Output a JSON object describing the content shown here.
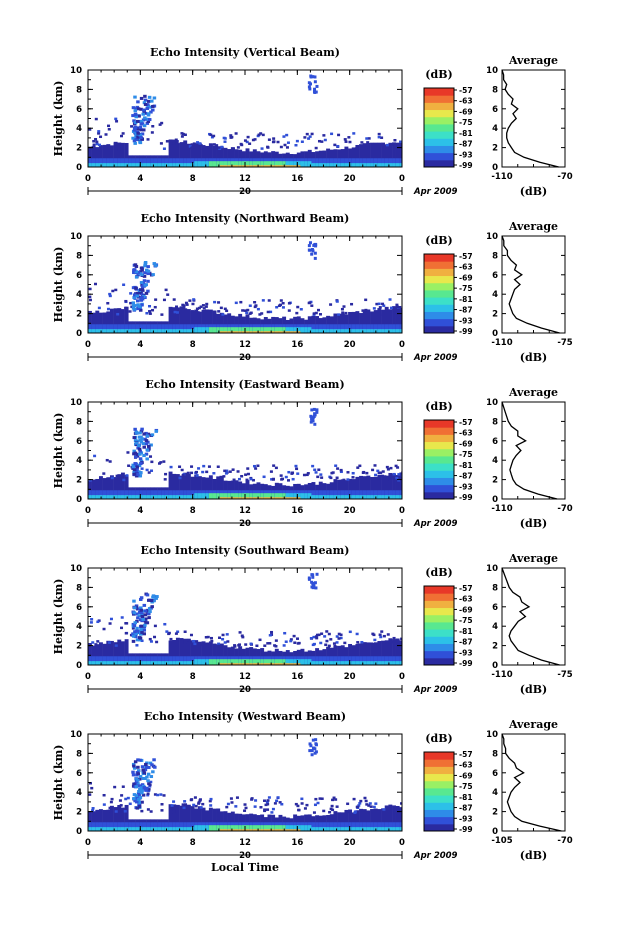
{
  "colormap": [
    "#2a2aa0",
    "#3050d8",
    "#2e8ce8",
    "#2cc0e8",
    "#3ce0c8",
    "#58e890",
    "#9af064",
    "#e8e84c",
    "#f0b040",
    "#f07034",
    "#e83828"
  ],
  "colorbar": {
    "unit": "(dB)",
    "ticks": [
      "-57",
      "-63",
      "-69",
      "-75",
      "-81",
      "-87",
      "-93",
      "-99"
    ]
  },
  "shared": {
    "ylabel": "Height (km)",
    "yticks": [
      "0",
      "2",
      "4",
      "6",
      "8",
      "10"
    ],
    "xticks": [
      "0",
      "4",
      "8",
      "12",
      "16",
      "20",
      "0"
    ],
    "date_mid": "20",
    "date_label": "Apr 2009",
    "x_label": "Local Time",
    "avg_title": "Average",
    "avg_unit": "(dB)"
  },
  "chart_data": [
    {
      "type": "heatmap",
      "title": "Echo Intensity (Vertical Beam)",
      "x_range": [
        0,
        24
      ],
      "y_range": [
        0,
        10
      ],
      "avg_xlim": [
        -110,
        -70
      ],
      "avg_xticks": [
        "-110",
        "-70"
      ],
      "average_profile": {
        "height_km": [
          0,
          0.5,
          1,
          1.5,
          2,
          2.5,
          3,
          3.5,
          4,
          4.5,
          5,
          5.5,
          6,
          6.5,
          7,
          7.5,
          8,
          8.5,
          9,
          9.5,
          10
        ],
        "dB": [
          -74,
          -86,
          -96,
          -102,
          -104,
          -106,
          -107,
          -107,
          -106,
          -104,
          -101,
          -103,
          -100,
          -104,
          -103,
          -106,
          -108,
          -107,
          -109,
          -109,
          -110
        ]
      }
    },
    {
      "type": "heatmap",
      "title": "Echo Intensity (Northward Beam)",
      "x_range": [
        0,
        24
      ],
      "y_range": [
        0,
        10
      ],
      "avg_xlim": [
        -110,
        -75
      ],
      "avg_xticks": [
        "-110",
        "-75"
      ],
      "average_profile": {
        "height_km": [
          0,
          0.5,
          1,
          1.5,
          2,
          2.5,
          3,
          3.5,
          4,
          4.5,
          5,
          5.5,
          6,
          6.5,
          7,
          7.5,
          8,
          8.5,
          9,
          9.5,
          10
        ],
        "dB": [
          -78,
          -88,
          -96,
          -102,
          -104,
          -105,
          -106,
          -105,
          -104,
          -103,
          -100,
          -103,
          -99,
          -103,
          -102,
          -105,
          -107,
          -107,
          -109,
          -109,
          -110
        ]
      }
    },
    {
      "type": "heatmap",
      "title": "Echo Intensity (Eastward Beam)",
      "x_range": [
        0,
        24
      ],
      "y_range": [
        0,
        10
      ],
      "avg_xlim": [
        -110,
        -70
      ],
      "avg_xticks": [
        "-110",
        "-70"
      ],
      "average_profile": {
        "height_km": [
          0,
          0.5,
          1,
          1.5,
          2,
          2.5,
          3,
          3.5,
          4,
          4.5,
          5,
          5.5,
          6,
          6.5,
          7,
          7.5,
          8,
          8.5,
          9,
          9.5,
          10
        ],
        "dB": [
          -75,
          -87,
          -96,
          -101,
          -103,
          -104,
          -105,
          -104,
          -103,
          -101,
          -98,
          -101,
          -95,
          -100,
          -100,
          -104,
          -106,
          -107,
          -108,
          -109,
          -110
        ]
      }
    },
    {
      "type": "heatmap",
      "title": "Echo Intensity (Southward Beam)",
      "x_range": [
        0,
        24
      ],
      "y_range": [
        0,
        10
      ],
      "avg_xlim": [
        -110,
        -75
      ],
      "avg_xticks": [
        "-110",
        "-75"
      ],
      "average_profile": {
        "height_km": [
          0,
          0.5,
          1,
          1.5,
          2,
          2.5,
          3,
          3.5,
          4,
          4.5,
          5,
          5.5,
          6,
          6.5,
          7,
          7.5,
          8,
          8.5,
          9,
          9.5,
          10
        ],
        "dB": [
          -78,
          -88,
          -95,
          -101,
          -103,
          -105,
          -106,
          -105,
          -103,
          -101,
          -97,
          -100,
          -95,
          -99,
          -100,
          -104,
          -106,
          -107,
          -108,
          -109,
          -110
        ]
      }
    },
    {
      "type": "heatmap",
      "title": "Echo Intensity (Westward Beam)",
      "x_range": [
        0,
        24
      ],
      "y_range": [
        0,
        10
      ],
      "avg_xlim": [
        -105,
        -70
      ],
      "avg_xticks": [
        "-105",
        "-70"
      ],
      "average_profile": {
        "height_km": [
          0,
          0.5,
          1,
          1.5,
          2,
          2.5,
          3,
          3.5,
          4,
          4.5,
          5,
          5.5,
          6,
          6.5,
          7,
          7.5,
          8,
          8.5,
          9,
          9.5,
          10
        ],
        "dB": [
          -72,
          -84,
          -94,
          -98,
          -100,
          -101,
          -102,
          -101,
          -100,
          -98,
          -95,
          -98,
          -93,
          -97,
          -98,
          -101,
          -103,
          -103,
          -104,
          -104,
          -105
        ]
      }
    }
  ]
}
